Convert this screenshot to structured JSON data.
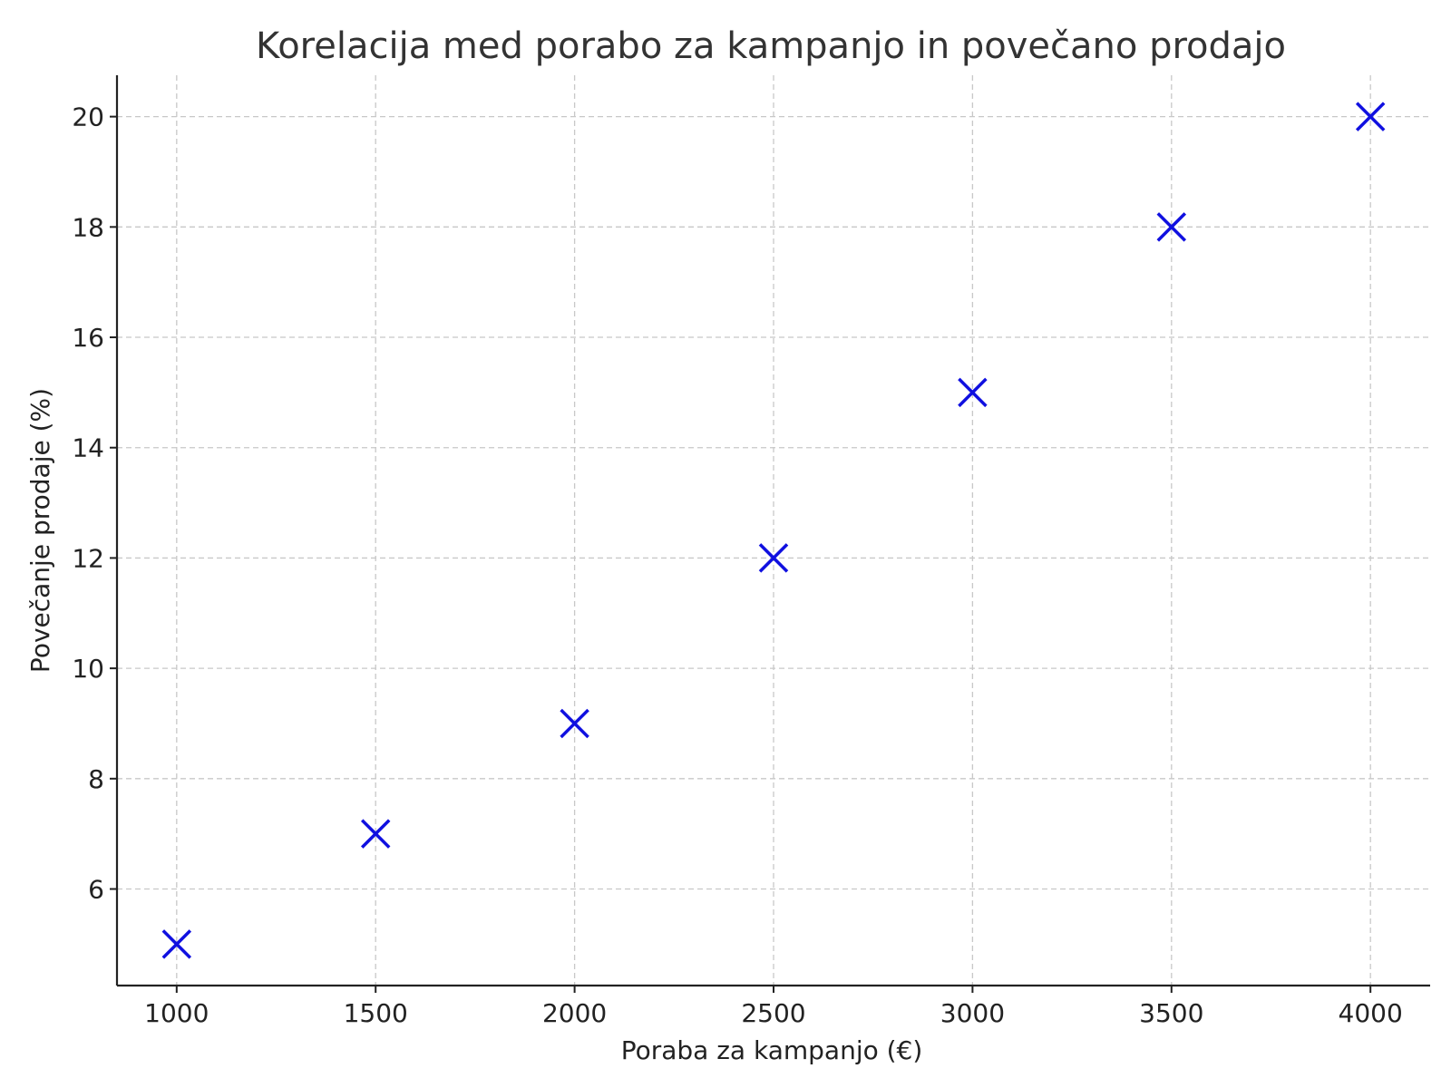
{
  "chart_data": {
    "type": "scatter",
    "title": "Korelacija med porabo za kampanjo in povečano prodajo",
    "xlabel": "Poraba za kampanjo (€)",
    "ylabel": "Povečanje prodaje (%)",
    "x": [
      1000,
      1500,
      2000,
      2500,
      3000,
      3500,
      4000
    ],
    "y": [
      5,
      7,
      9,
      12,
      15,
      18,
      20
    ],
    "xlim": [
      850,
      4150
    ],
    "ylim": [
      4.25,
      20.75
    ],
    "xticks": [
      "1000",
      "1500",
      "2000",
      "2500",
      "3000",
      "3500",
      "4000"
    ],
    "yticks": [
      "6",
      "8",
      "10",
      "12",
      "14",
      "16",
      "18",
      "20"
    ],
    "marker": "x",
    "marker_color": "#1010e0",
    "grid": true
  }
}
